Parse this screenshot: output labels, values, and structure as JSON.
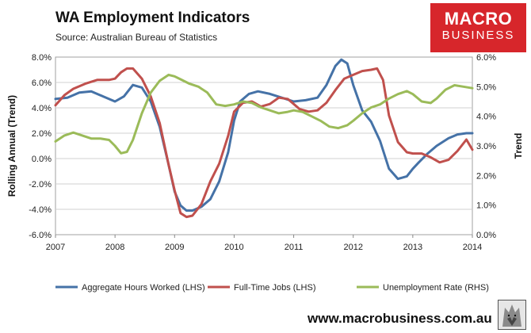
{
  "header": {
    "title": "WA Employment Indicators",
    "subtitle": "Source: Australian Bureau of Statistics"
  },
  "logo": {
    "line1": "MACRO",
    "line2": "BUSINESS",
    "color": "#d7262b"
  },
  "footer": {
    "url": "www.macrobusiness.com.au"
  },
  "chart_data": {
    "type": "line",
    "title": "WA Employment Indicators",
    "subtitle": "Source: Australian Bureau of Statistics",
    "ylabel": "Rolling Annual (Trend)",
    "y2label": "Trend",
    "xlim": [
      2007,
      2014
    ],
    "ylim": [
      -6,
      8
    ],
    "y2lim": [
      0,
      6
    ],
    "xticks": [
      "2007",
      "2008",
      "2009",
      "2010",
      "2011",
      "2012",
      "2013",
      "2014"
    ],
    "yticks": [
      "8.0%",
      "6.0%",
      "4.0%",
      "2.0%",
      "0.0%",
      "-2.0%",
      "-4.0%",
      "-6.0%"
    ],
    "y2ticks": [
      "6.0%",
      "5.0%",
      "4.0%",
      "3.0%",
      "2.0%",
      "1.0%",
      "0.0%"
    ],
    "grid": true,
    "legend_position": "bottom",
    "series": [
      {
        "name": "Aggregate Hours Worked (LHS)",
        "axis": "left",
        "color": "#4572a7",
        "x": [
          2007.0,
          2007.2,
          2007.4,
          2007.6,
          2007.8,
          2008.0,
          2008.15,
          2008.3,
          2008.45,
          2008.6,
          2008.75,
          2008.9,
          2009.0,
          2009.1,
          2009.2,
          2009.3,
          2009.45,
          2009.6,
          2009.75,
          2009.9,
          2010.0,
          2010.1,
          2010.25,
          2010.4,
          2010.6,
          2010.8,
          2011.0,
          2011.2,
          2011.4,
          2011.55,
          2011.7,
          2011.8,
          2011.9,
          2012.0,
          2012.15,
          2012.3,
          2012.45,
          2012.6,
          2012.75,
          2012.9,
          2013.0,
          2013.1,
          2013.25,
          2013.4,
          2013.6,
          2013.75,
          2013.9,
          2014.0
        ],
        "y": [
          4.7,
          4.8,
          5.2,
          5.3,
          4.9,
          4.5,
          4.9,
          5.8,
          5.6,
          4.5,
          2.5,
          -0.5,
          -2.6,
          -3.7,
          -4.1,
          -4.1,
          -3.8,
          -3.2,
          -1.8,
          0.5,
          3.0,
          4.5,
          5.1,
          5.3,
          5.1,
          4.8,
          4.5,
          4.6,
          4.8,
          5.8,
          7.3,
          7.8,
          7.5,
          5.8,
          3.8,
          2.9,
          1.4,
          -0.8,
          -1.6,
          -1.4,
          -0.8,
          -0.3,
          0.4,
          1.0,
          1.6,
          1.9,
          2.0,
          2.0
        ]
      },
      {
        "name": "Full-Time Jobs (LHS)",
        "axis": "left",
        "color": "#c0504d",
        "x": [
          2007.0,
          2007.15,
          2007.3,
          2007.5,
          2007.7,
          2007.9,
          2008.0,
          2008.1,
          2008.2,
          2008.3,
          2008.45,
          2008.6,
          2008.75,
          2008.9,
          2009.0,
          2009.1,
          2009.2,
          2009.3,
          2009.45,
          2009.6,
          2009.75,
          2009.9,
          2010.0,
          2010.15,
          2010.3,
          2010.45,
          2010.6,
          2010.75,
          2010.9,
          2011.0,
          2011.1,
          2011.25,
          2011.4,
          2011.55,
          2011.7,
          2011.85,
          2012.0,
          2012.15,
          2012.3,
          2012.4,
          2012.5,
          2012.6,
          2012.75,
          2012.9,
          2013.0,
          2013.15,
          2013.3,
          2013.45,
          2013.6,
          2013.75,
          2013.9,
          2014.0
        ],
        "y": [
          4.2,
          5.0,
          5.5,
          5.9,
          6.2,
          6.2,
          6.3,
          6.8,
          7.1,
          7.1,
          6.3,
          4.9,
          2.8,
          -0.5,
          -2.5,
          -4.3,
          -4.6,
          -4.5,
          -3.6,
          -1.8,
          -0.4,
          1.8,
          3.7,
          4.4,
          4.5,
          4.1,
          4.3,
          4.8,
          4.7,
          4.3,
          3.9,
          3.7,
          3.8,
          4.4,
          5.4,
          6.3,
          6.6,
          6.9,
          7.0,
          7.1,
          6.2,
          3.4,
          1.3,
          0.5,
          0.4,
          0.4,
          0.1,
          -0.3,
          -0.1,
          0.6,
          1.5,
          0.7
        ]
      },
      {
        "name": "Unemployment Rate (RHS)",
        "axis": "right",
        "color": "#9bbb59",
        "x": [
          2007.0,
          2007.15,
          2007.3,
          2007.45,
          2007.6,
          2007.75,
          2007.9,
          2008.0,
          2008.1,
          2008.2,
          2008.3,
          2008.45,
          2008.6,
          2008.75,
          2008.9,
          2009.0,
          2009.1,
          2009.25,
          2009.4,
          2009.55,
          2009.7,
          2009.85,
          2010.0,
          2010.15,
          2010.3,
          2010.45,
          2010.6,
          2010.75,
          2010.9,
          2011.0,
          2011.15,
          2011.3,
          2011.45,
          2011.6,
          2011.75,
          2011.9,
          2012.0,
          2012.15,
          2012.3,
          2012.45,
          2012.6,
          2012.75,
          2012.9,
          2013.0,
          2013.15,
          2013.3,
          2013.4,
          2013.55,
          2013.7,
          2013.85,
          2014.0
        ],
        "y": [
          3.15,
          3.35,
          3.45,
          3.35,
          3.25,
          3.25,
          3.2,
          3.0,
          2.75,
          2.8,
          3.2,
          4.1,
          4.8,
          5.2,
          5.4,
          5.35,
          5.25,
          5.1,
          5.0,
          4.8,
          4.4,
          4.35,
          4.4,
          4.5,
          4.45,
          4.3,
          4.2,
          4.1,
          4.15,
          4.2,
          4.15,
          4.0,
          3.85,
          3.65,
          3.6,
          3.7,
          3.85,
          4.1,
          4.3,
          4.4,
          4.6,
          4.75,
          4.85,
          4.75,
          4.5,
          4.45,
          4.6,
          4.9,
          5.05,
          5.0,
          4.95
        ]
      }
    ]
  }
}
